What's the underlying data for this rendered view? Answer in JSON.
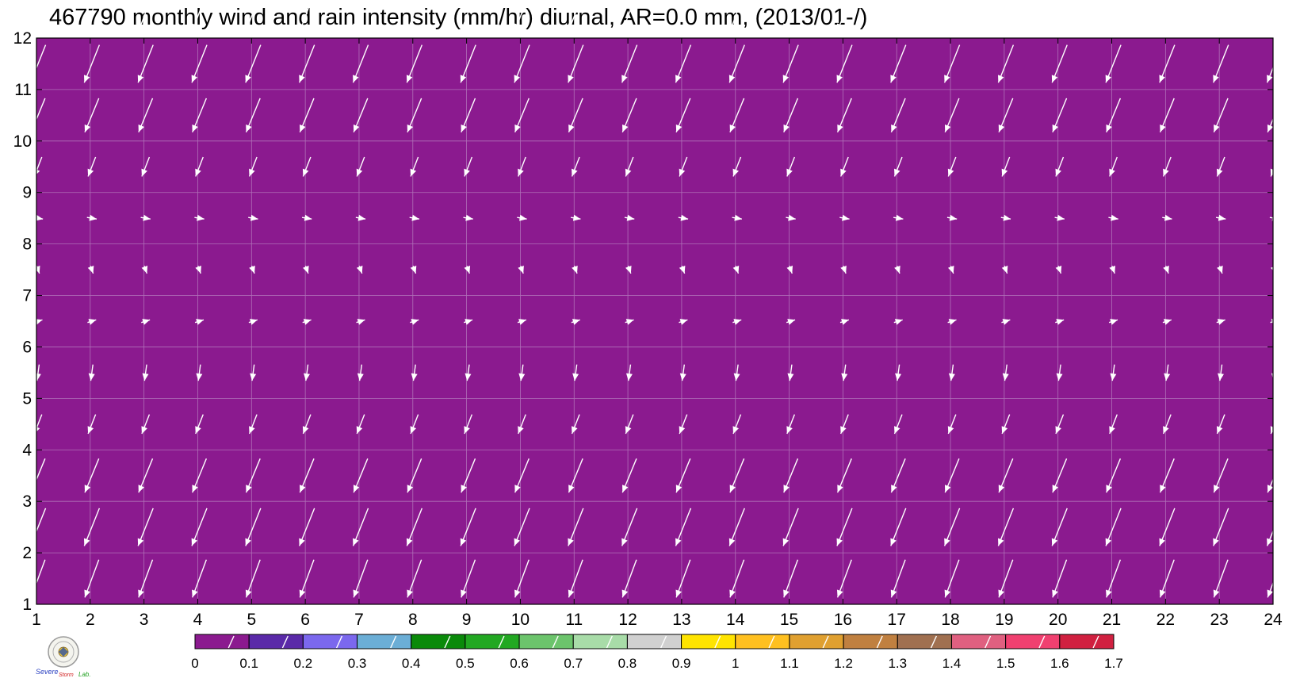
{
  "title": "467790 monthly wind and rain intensity (mm/hr) diurnal, AR=0.0 mm, (2013/01-/)",
  "chart_data": {
    "type": "heatmap",
    "overlay": "wind vectors",
    "x_ticks": [
      "1",
      "2",
      "3",
      "4",
      "5",
      "6",
      "7",
      "8",
      "9",
      "10",
      "11",
      "12",
      "13",
      "14",
      "15",
      "16",
      "17",
      "18",
      "19",
      "20",
      "21",
      "22",
      "23",
      "24"
    ],
    "y_ticks": [
      "1",
      "2",
      "3",
      "4",
      "5",
      "6",
      "7",
      "8",
      "9",
      "10",
      "11",
      "12"
    ],
    "xlim": [
      1,
      24
    ],
    "ylim": [
      1,
      12
    ],
    "grid": true,
    "field_value_all_cells": 0.0,
    "field_color": "#8B1A8F",
    "vector_color": "#ffffff",
    "wind_rows": [
      {
        "month": 1.5,
        "u": -0.26,
        "v": -0.7
      },
      {
        "month": 2.5,
        "u": -0.28,
        "v": -0.7
      },
      {
        "month": 3.5,
        "u": -0.26,
        "v": -0.63
      },
      {
        "month": 4.5,
        "u": -0.14,
        "v": -0.36
      },
      {
        "month": 5.5,
        "u": -0.04,
        "v": -0.3
      },
      {
        "month": 6.5,
        "u": 0.16,
        "v": 0.05
      },
      {
        "month": 7.5,
        "u": 0.05,
        "v": -0.14
      },
      {
        "month": 8.5,
        "u": 0.18,
        "v": -0.03
      },
      {
        "month": 9.5,
        "u": -0.14,
        "v": -0.36
      },
      {
        "month": 10.5,
        "u": -0.26,
        "v": -0.63
      },
      {
        "month": 11.5,
        "u": -0.28,
        "v": -0.7
      },
      {
        "month": 12.5,
        "u": -0.26,
        "v": -0.7
      }
    ],
    "colorbar": {
      "ticks": [
        "0",
        "0.1",
        "0.2",
        "0.3",
        "0.4",
        "0.5",
        "0.6",
        "0.7",
        "0.8",
        "0.9",
        "1",
        "1.1",
        "1.2",
        "1.3",
        "1.4",
        "1.5",
        "1.6",
        "1.7"
      ],
      "colors": [
        "#8B1A8F",
        "#5A2AA8",
        "#7B68EE",
        "#6BAED6",
        "#0A8A0A",
        "#22A822",
        "#6CC46C",
        "#A8DCA8",
        "#D0D0D0",
        "#FFE400",
        "#FFC020",
        "#E0A030",
        "#C08040",
        "#A07050",
        "#E06080",
        "#F04070",
        "#D02040"
      ]
    }
  },
  "logo": {
    "text_left": "Severe",
    "text_right": "Storm",
    "text_lab": "Lab."
  }
}
